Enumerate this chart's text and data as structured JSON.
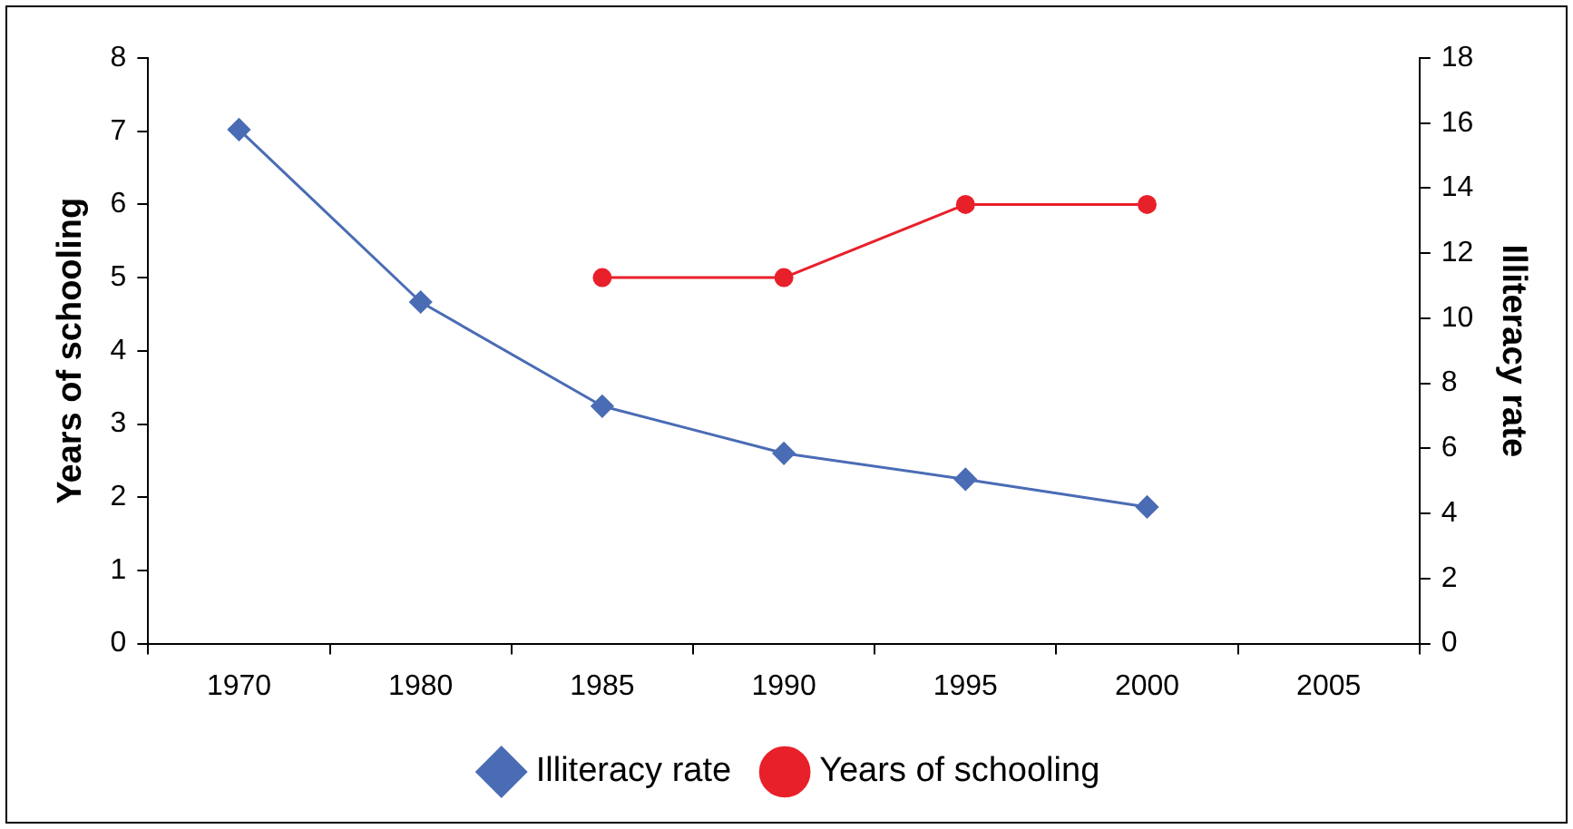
{
  "chart_data": {
    "type": "line",
    "ylabel": "Years of schooling",
    "y2label": "Illiteracy rate",
    "categories": [
      "1970",
      "1980",
      "1985",
      "1990",
      "1995",
      "2000",
      "2005"
    ],
    "series": [
      {
        "name": "Illiteracy rate",
        "color": "#4a6cb5",
        "axis": "y2",
        "marker": "diamond",
        "values": [
          15.8,
          10.5,
          7.3,
          5.85,
          5.05,
          4.2,
          null
        ]
      },
      {
        "name": "Years of schooling",
        "color": "#e8202a",
        "axis": "y",
        "marker": "circle",
        "values": [
          null,
          null,
          5,
          5,
          6,
          6,
          null
        ]
      }
    ],
    "ylim": [
      0,
      8
    ],
    "yticks": [
      0,
      1,
      2,
      3,
      4,
      5,
      6,
      7,
      8
    ],
    "y2lim": [
      0,
      18
    ],
    "y2ticks": [
      0,
      2,
      4,
      6,
      8,
      10,
      12,
      14,
      16,
      18
    ],
    "grid": false,
    "legend": "bottom"
  }
}
